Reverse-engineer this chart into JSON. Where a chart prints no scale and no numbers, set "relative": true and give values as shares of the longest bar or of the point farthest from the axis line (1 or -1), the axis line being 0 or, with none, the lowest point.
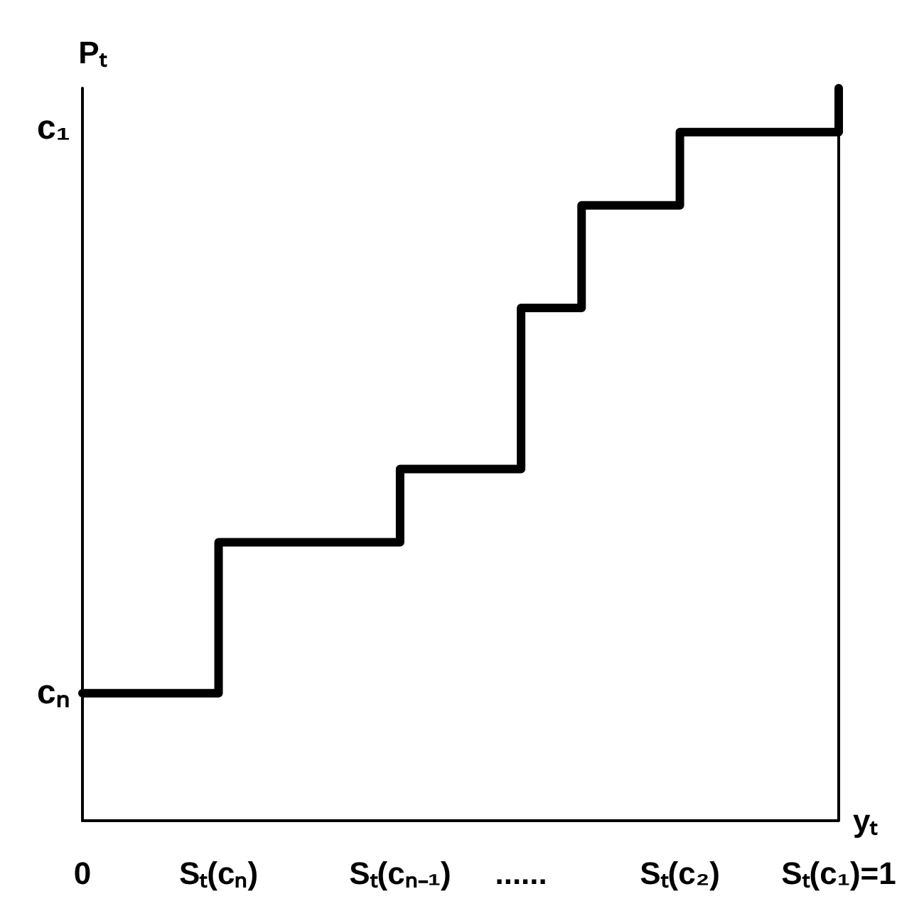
{
  "chart_data": {
    "type": "step",
    "relative": true,
    "xlabel": "yₜ",
    "ylabel": "Pₜ",
    "marker": "none",
    "line_style": "solid",
    "color": "#000000",
    "x": [
      0,
      0.18,
      0.42,
      0.58,
      0.66,
      0.79,
      1
    ],
    "values": [
      0.174,
      0.38,
      0.48,
      0.7,
      0.84,
      0.94,
      1
    ],
    "xlim": [
      0,
      1
    ],
    "xticks": [
      0,
      {
        "value": 0.18,
        "label": "Sₜ(cₙ)"
      },
      {
        "value": 0.42,
        "label": "Sₜ(cₙ₋₁)"
      },
      {
        "value": 0.58,
        "label": "......"
      },
      {
        "value": 0.79,
        "label": "Sₜ(c₂)"
      },
      {
        "value": 1,
        "label": "Sₜ(c₁)=1"
      }
    ],
    "ref_lines": [
      {
        "axis": "x",
        "value": 1,
        "color": "#000000"
      }
    ],
    "annotations": [
      "c₁",
      "cₙ"
    ]
  }
}
